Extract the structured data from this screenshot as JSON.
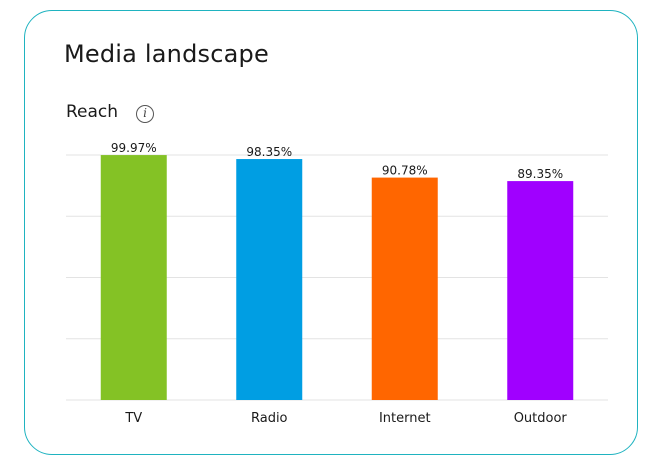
{
  "card": {
    "border_color": "#1fb3c0"
  },
  "header": {
    "title": "Media landscape"
  },
  "section": {
    "label": "Reach",
    "info_icon": "info-icon"
  },
  "chart_data": {
    "type": "bar",
    "categories": [
      "TV",
      "Radio",
      "Internet",
      "Outdoor"
    ],
    "values": [
      99.97,
      98.35,
      90.78,
      89.35
    ],
    "value_labels": [
      "99.97%",
      "98.35%",
      "90.78%",
      "89.35%"
    ],
    "colors": [
      "#84c225",
      "#009ee3",
      "#ff6600",
      "#a000ff"
    ],
    "ylim": [
      0,
      100
    ],
    "grid": true,
    "xlabel": "",
    "ylabel": ""
  }
}
